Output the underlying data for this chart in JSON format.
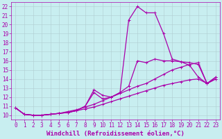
{
  "xlabel": "Windchill (Refroidissement éolien,°C)",
  "xlim": [
    -0.5,
    23.5
  ],
  "ylim": [
    9.5,
    22.5
  ],
  "xticks": [
    0,
    1,
    2,
    3,
    4,
    5,
    6,
    7,
    8,
    9,
    10,
    11,
    12,
    13,
    14,
    15,
    16,
    17,
    18,
    19,
    20,
    21,
    22,
    23
  ],
  "yticks": [
    10,
    11,
    12,
    13,
    14,
    15,
    16,
    17,
    18,
    19,
    20,
    21,
    22
  ],
  "background_color": "#c8eef0",
  "grid_color": "#b0ccd0",
  "line_color": "#aa00aa",
  "lines": [
    {
      "x": [
        0,
        1,
        2,
        3,
        4,
        5,
        6,
        7,
        8,
        9,
        10,
        11,
        12,
        13,
        14,
        15,
        16,
        17,
        18,
        19,
        20,
        21,
        22,
        23
      ],
      "y": [
        10.8,
        10.1,
        10.0,
        10.0,
        10.1,
        10.2,
        10.3,
        10.5,
        10.7,
        10.9,
        11.2,
        11.5,
        11.8,
        12.1,
        12.4,
        12.7,
        13.0,
        13.3,
        13.5,
        13.7,
        13.9,
        14.0,
        13.5,
        14.0
      ]
    },
    {
      "x": [
        0,
        1,
        2,
        3,
        4,
        5,
        6,
        7,
        8,
        9,
        10,
        11,
        12,
        13,
        14,
        15,
        16,
        17,
        18,
        19,
        20,
        21,
        22,
        23
      ],
      "y": [
        10.8,
        10.1,
        10.0,
        10.0,
        10.1,
        10.2,
        10.4,
        10.6,
        10.9,
        11.2,
        11.6,
        12.0,
        12.4,
        12.8,
        13.2,
        13.5,
        14.0,
        14.5,
        15.0,
        15.3,
        15.6,
        15.8,
        13.5,
        14.2
      ]
    },
    {
      "x": [
        0,
        1,
        2,
        3,
        4,
        5,
        6,
        7,
        8,
        9,
        10,
        11,
        12,
        13,
        14,
        15,
        16,
        17,
        18,
        19,
        20,
        21,
        22,
        23
      ],
      "y": [
        10.8,
        10.1,
        10.0,
        10.0,
        10.1,
        10.2,
        10.3,
        10.5,
        11.0,
        12.8,
        12.2,
        12.0,
        12.5,
        13.2,
        16.0,
        15.8,
        16.2,
        16.0,
        16.0,
        15.9,
        15.8,
        15.6,
        13.5,
        14.2
      ]
    },
    {
      "x": [
        0,
        1,
        2,
        3,
        4,
        5,
        6,
        7,
        8,
        9,
        10,
        11,
        12,
        13,
        14,
        15,
        16,
        17,
        18,
        19,
        20,
        21,
        22,
        23
      ],
      "y": [
        10.8,
        10.1,
        10.0,
        10.0,
        10.1,
        10.2,
        10.3,
        10.5,
        11.0,
        12.5,
        11.8,
        12.0,
        12.5,
        20.5,
        22.0,
        21.3,
        21.3,
        19.0,
        16.2,
        15.9,
        15.5,
        14.2,
        13.5,
        14.0
      ]
    }
  ],
  "tick_fontsize": 5.5,
  "label_fontsize": 6.5,
  "line_width": 0.9,
  "marker_size": 3
}
